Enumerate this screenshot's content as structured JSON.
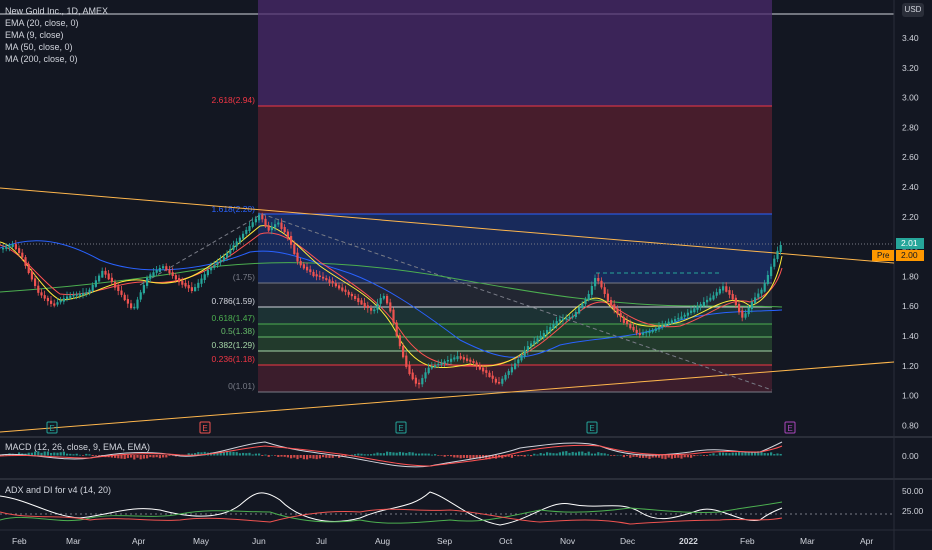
{
  "header": {
    "title": "New Gold Inc., 1D, AMEX",
    "currency": "USD"
  },
  "indicators": [
    "EMA (20, close, 0)",
    "EMA (9, close)",
    "MA (50, close, 0)",
    "MA (200, close, 0)"
  ],
  "price_axis": [
    "3.40",
    "3.20",
    "3.00",
    "2.80",
    "2.60",
    "2.40",
    "2.20",
    "2.00",
    "1.80",
    "1.60",
    "1.40",
    "1.20",
    "1.00",
    "0.80"
  ],
  "price_tags": {
    "last": "2.01",
    "pre_label": "Pre",
    "pre_value": "2.00"
  },
  "fib_levels": [
    {
      "label": "2.618(2.94)",
      "color": "#f23645"
    },
    {
      "label": "1.618(2.20)",
      "color": "#2962ff"
    },
    {
      "label": "(1.75)",
      "color": "#787b86"
    },
    {
      "label": "0.786(1.59)",
      "color": "#d1d4dc"
    },
    {
      "label": "0.618(1.47)",
      "color": "#4caf50"
    },
    {
      "label": "0.5(1.38)",
      "color": "#66bb6a"
    },
    {
      "label": "0.382(1.29)",
      "color": "#a5d6a7"
    },
    {
      "label": "0.236(1.18)",
      "color": "#f23645"
    },
    {
      "label": "0(1.01)",
      "color": "#787b86"
    }
  ],
  "earnings_markers": [
    "E",
    "E",
    "E",
    "E",
    "E"
  ],
  "macd": {
    "label": "MACD (12, 26, close, 9, EMA, EMA)",
    "axis": [
      "0.00"
    ]
  },
  "adx": {
    "label": "ADX and DI for v4 (14, 20)",
    "axis": [
      "50.00",
      "25.00"
    ]
  },
  "time_axis": [
    "Feb",
    "Mar",
    "Apr",
    "May",
    "Jun",
    "Jul",
    "Aug",
    "Sep",
    "Oct",
    "Nov",
    "Dec",
    "2022",
    "Feb",
    "Mar",
    "Apr"
  ],
  "colors": {
    "background": "#131722",
    "up": "#26a69a",
    "down": "#ef5350",
    "ema20": "#ff5252",
    "ema9": "#ffeb3b",
    "ma50": "#2962ff",
    "ma200": "#4caf50",
    "trendline": "#ffb74d"
  }
}
